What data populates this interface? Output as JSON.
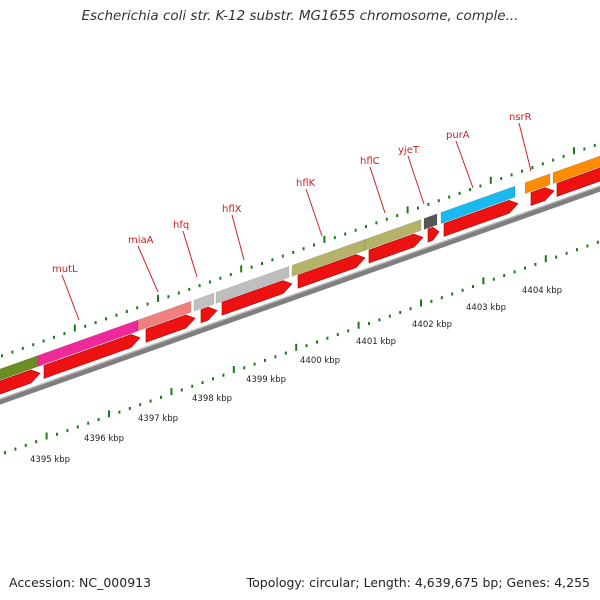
{
  "title": "Escherichia coli str. K-12 substr. MG1655 chromosome, comple...",
  "footer": {
    "accession": "Accession: NC_000913",
    "summary": "Topology: circular; Length: 4,639,675 bp; Genes: 4,255"
  },
  "colors": {
    "backbone": "#7f7f7f",
    "cds_arrow": "#ee1111",
    "label": "#cc2222",
    "tick": "#1a7a1a"
  },
  "genes": [
    {
      "name": "",
      "color": "#6b8e23"
    },
    {
      "name": "mutL",
      "color": "#ee2a9a"
    },
    {
      "name": "miaA",
      "color": "#f08080"
    },
    {
      "name": "hfq",
      "color": "#c0c0c0"
    },
    {
      "name": "hflX",
      "color": "#bebebe"
    },
    {
      "name": "hflK",
      "color": "#b5b26a"
    },
    {
      "name": "hflC",
      "color": "#b5b26a"
    },
    {
      "name": "yjeT",
      "color": "#555555"
    },
    {
      "name": "purA",
      "color": "#18b8f0"
    },
    {
      "name": "nsrR",
      "color": "#ff8c00"
    },
    {
      "name": "",
      "color": "#ff8c00"
    }
  ],
  "ruler": {
    "labels": [
      "4395 kbp",
      "4396 kbp",
      "4397 kbp",
      "4398 kbp",
      "4399 kbp",
      "4400 kbp",
      "4401 kbp",
      "4402 kbp",
      "4403 kbp",
      "4404 kbp"
    ]
  }
}
